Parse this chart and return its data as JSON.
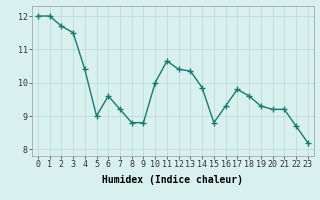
{
  "x": [
    0,
    1,
    2,
    3,
    4,
    5,
    6,
    7,
    8,
    9,
    10,
    11,
    12,
    13,
    14,
    15,
    16,
    17,
    18,
    19,
    20,
    21,
    22,
    23
  ],
  "y": [
    12.0,
    12.0,
    11.7,
    11.5,
    10.4,
    9.0,
    9.6,
    9.2,
    8.8,
    8.8,
    10.0,
    10.65,
    10.4,
    10.35,
    9.85,
    8.8,
    9.3,
    9.8,
    9.6,
    9.3,
    9.2,
    9.2,
    8.7,
    8.2
  ],
  "line_color": "#1a7a6e",
  "marker": "+",
  "marker_size": 4,
  "bg_color": "#d8f0ee",
  "grid_color": "#b8d8d4",
  "xlabel": "Humidex (Indice chaleur)",
  "ylim": [
    7.8,
    12.3
  ],
  "xlim": [
    -0.5,
    23.5
  ],
  "yticks": [
    8,
    9,
    10,
    11,
    12
  ],
  "xticks": [
    0,
    1,
    2,
    3,
    4,
    5,
    6,
    7,
    8,
    9,
    10,
    11,
    12,
    13,
    14,
    15,
    16,
    17,
    18,
    19,
    20,
    21,
    22,
    23
  ],
  "tick_fontsize": 6,
  "xlabel_fontsize": 7,
  "line_width": 1.0
}
